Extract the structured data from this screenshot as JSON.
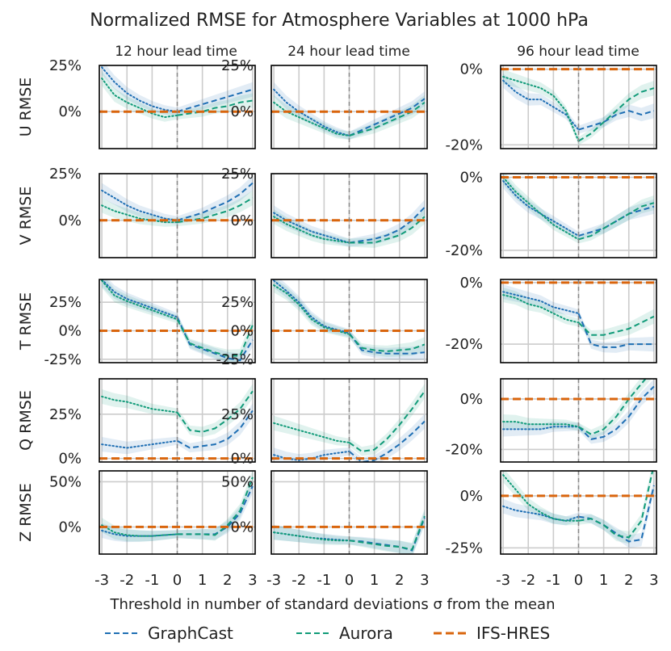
{
  "title": "Normalized RMSE for Atmosphere Variables at 1000 hPa",
  "xlabel": "Threshold in number of standard deviations σ from the mean",
  "columns": [
    "12 hour lead time",
    "24 hour lead time",
    "96 hour lead time"
  ],
  "rows": [
    "U RMSE",
    "V RMSE",
    "T RMSE",
    "Q RMSE",
    "Z RMSE"
  ],
  "x_ticks": [
    "-3",
    "-2",
    "-1",
    "0",
    "1",
    "2",
    "3"
  ],
  "legend": [
    {
      "label": "GraphCast",
      "color": "#1f6fb4"
    },
    {
      "label": "Aurora",
      "color": "#119b79"
    },
    {
      "label": "IFS-HRES",
      "color": "#d9650d"
    }
  ],
  "chart_data": {
    "type": "line",
    "x": [
      -3,
      -2.5,
      -2,
      -1.5,
      -1,
      -0.5,
      0,
      0.5,
      1,
      1.5,
      2,
      2.5,
      3
    ],
    "baseline": "IFS-HRES at 0%",
    "panels": [
      {
        "row": "U RMSE",
        "col": "12 hour lead time",
        "ylim": [
          -0.2,
          0.25
        ],
        "yticks": [
          0,
          0.25
        ],
        "ytick_labels": [
          "0%",
          "25%"
        ],
        "graphcast": [
          0.24,
          0.16,
          0.1,
          0.06,
          0.03,
          0.01,
          0,
          0.02,
          0.04,
          0.06,
          0.08,
          0.1,
          0.12
        ],
        "aurora": [
          0.18,
          0.09,
          0.05,
          0.02,
          -0.01,
          -0.03,
          -0.02,
          -0.01,
          0,
          0.02,
          0.03,
          0.05,
          0.06
        ]
      },
      {
        "row": "U RMSE",
        "col": "24 hour lead time",
        "ylim": [
          -0.2,
          0.25
        ],
        "yticks": [
          0,
          0.25
        ],
        "ytick_labels": [
          "0%",
          "25%"
        ],
        "graphcast": [
          0.12,
          0.05,
          0,
          -0.04,
          -0.08,
          -0.11,
          -0.13,
          -0.1,
          -0.07,
          -0.04,
          -0.01,
          0.02,
          0.07
        ],
        "aurora": [
          0.05,
          0,
          -0.03,
          -0.06,
          -0.09,
          -0.12,
          -0.13,
          -0.11,
          -0.09,
          -0.06,
          -0.03,
          0,
          0.05
        ]
      },
      {
        "row": "U RMSE",
        "col": "96 hour lead time",
        "ylim": [
          -0.21,
          0.01
        ],
        "yticks": [
          0,
          -0.2
        ],
        "ytick_labels": [
          "0%",
          "-20%"
        ],
        "graphcast": [
          -0.03,
          -0.06,
          -0.08,
          -0.08,
          -0.1,
          -0.12,
          -0.16,
          -0.15,
          -0.14,
          -0.12,
          -0.11,
          -0.12,
          -0.11
        ],
        "aurora": [
          -0.02,
          -0.03,
          -0.04,
          -0.05,
          -0.07,
          -0.11,
          -0.19,
          -0.17,
          -0.14,
          -0.11,
          -0.08,
          -0.06,
          -0.05
        ]
      },
      {
        "row": "V RMSE",
        "col": "12 hour lead time",
        "ylim": [
          -0.2,
          0.25
        ],
        "yticks": [
          0,
          0.25
        ],
        "ytick_labels": [
          "0%",
          "25%"
        ],
        "graphcast": [
          0.16,
          0.12,
          0.08,
          0.05,
          0.03,
          0.01,
          0,
          0.02,
          0.04,
          0.07,
          0.1,
          0.14,
          0.2
        ],
        "aurora": [
          0.08,
          0.05,
          0.03,
          0.01,
          0,
          -0.01,
          -0.01,
          0,
          0.01,
          0.03,
          0.05,
          0.08,
          0.12
        ]
      },
      {
        "row": "V RMSE",
        "col": "24 hour lead time",
        "ylim": [
          -0.2,
          0.25
        ],
        "yticks": [
          0,
          0.25
        ],
        "ytick_labels": [
          "0%",
          "25%"
        ],
        "graphcast": [
          0.04,
          0,
          -0.03,
          -0.06,
          -0.08,
          -0.1,
          -0.12,
          -0.11,
          -0.1,
          -0.08,
          -0.05,
          0,
          0.07
        ],
        "aurora": [
          0.02,
          -0.02,
          -0.05,
          -0.08,
          -0.1,
          -0.11,
          -0.12,
          -0.12,
          -0.12,
          -0.1,
          -0.08,
          -0.04,
          0.02
        ]
      },
      {
        "row": "V RMSE",
        "col": "96 hour lead time",
        "ylim": [
          -0.22,
          0.01
        ],
        "yticks": [
          0,
          -0.2
        ],
        "ytick_labels": [
          "0%",
          "-20%"
        ],
        "graphcast": [
          -0.01,
          -0.05,
          -0.08,
          -0.1,
          -0.12,
          -0.14,
          -0.16,
          -0.15,
          -0.14,
          -0.12,
          -0.1,
          -0.09,
          -0.08
        ],
        "aurora": [
          0,
          -0.04,
          -0.07,
          -0.1,
          -0.13,
          -0.15,
          -0.17,
          -0.16,
          -0.14,
          -0.12,
          -0.1,
          -0.08,
          -0.07
        ]
      },
      {
        "row": "T RMSE",
        "col": "12 hour lead time",
        "ylim": [
          -0.28,
          0.45
        ],
        "yticks": [
          -0.25,
          0,
          0.25
        ],
        "ytick_labels": [
          "-25%",
          "0%",
          "25%"
        ],
        "graphcast": [
          0.45,
          0.34,
          0.28,
          0.24,
          0.2,
          0.16,
          0.12,
          -0.12,
          -0.16,
          -0.2,
          -0.24,
          -0.26,
          -0.08
        ],
        "aurora": [
          0.44,
          0.31,
          0.26,
          0.22,
          0.18,
          0.14,
          0.1,
          -0.11,
          -0.15,
          -0.19,
          -0.22,
          -0.22,
          0.05
        ]
      },
      {
        "row": "T RMSE",
        "col": "24 hour lead time",
        "ylim": [
          -0.28,
          0.45
        ],
        "yticks": [
          -0.25,
          0,
          0.25
        ],
        "ytick_labels": [
          "-25%",
          "0%",
          "25%"
        ],
        "graphcast": [
          0.44,
          0.35,
          0.25,
          0.12,
          0.04,
          0.01,
          -0.02,
          -0.17,
          -0.19,
          -0.2,
          -0.2,
          -0.2,
          -0.19
        ],
        "aurora": [
          0.4,
          0.33,
          0.23,
          0.1,
          0.03,
          0,
          -0.03,
          -0.15,
          -0.17,
          -0.18,
          -0.17,
          -0.16,
          -0.12
        ]
      },
      {
        "row": "T RMSE",
        "col": "96 hour lead time",
        "ylim": [
          -0.26,
          0.01
        ],
        "yticks": [
          0,
          -0.2
        ],
        "ytick_labels": [
          "0%",
          "-20%"
        ],
        "graphcast": [
          -0.03,
          -0.04,
          -0.05,
          -0.06,
          -0.08,
          -0.09,
          -0.1,
          -0.2,
          -0.21,
          -0.21,
          -0.2,
          -0.2,
          -0.2
        ],
        "aurora": [
          -0.04,
          -0.05,
          -0.07,
          -0.08,
          -0.1,
          -0.12,
          -0.13,
          -0.17,
          -0.17,
          -0.16,
          -0.15,
          -0.13,
          -0.11
        ]
      },
      {
        "row": "Q RMSE",
        "col": "12 hour lead time",
        "ylim": [
          -0.02,
          0.45
        ],
        "yticks": [
          0,
          0.25
        ],
        "ytick_labels": [
          "0%",
          "25%"
        ],
        "graphcast": [
          0.08,
          0.07,
          0.06,
          0.07,
          0.08,
          0.09,
          0.1,
          0.06,
          0.07,
          0.08,
          0.11,
          0.17,
          0.27
        ],
        "aurora": [
          0.35,
          0.33,
          0.32,
          0.3,
          0.28,
          0.27,
          0.26,
          0.16,
          0.15,
          0.17,
          0.22,
          0.28,
          0.38
        ]
      },
      {
        "row": "Q RMSE",
        "col": "24 hour lead time",
        "ylim": [
          -0.02,
          0.45
        ],
        "yticks": [
          0,
          0.25
        ],
        "ytick_labels": [
          "0%",
          "25%"
        ],
        "graphcast": [
          0.02,
          0.0,
          -0.01,
          0,
          0.02,
          0.03,
          0.04,
          -0.02,
          -0.01,
          0.03,
          0.08,
          0.14,
          0.21
        ],
        "aurora": [
          0.2,
          0.18,
          0.16,
          0.14,
          0.12,
          0.1,
          0.09,
          0.04,
          0.05,
          0.11,
          0.19,
          0.28,
          0.38
        ]
      },
      {
        "row": "Q RMSE",
        "col": "96 hour lead time",
        "ylim": [
          -0.25,
          0.08
        ],
        "yticks": [
          0,
          -0.2
        ],
        "ytick_labels": [
          "0%",
          "-20%"
        ],
        "graphcast": [
          -0.12,
          -0.12,
          -0.12,
          -0.12,
          -0.11,
          -0.11,
          -0.11,
          -0.16,
          -0.15,
          -0.12,
          -0.07,
          0,
          0.05
        ],
        "aurora": [
          -0.09,
          -0.09,
          -0.1,
          -0.1,
          -0.1,
          -0.1,
          -0.11,
          -0.14,
          -0.12,
          -0.07,
          0,
          0.06,
          0.12
        ]
      },
      {
        "row": "Z RMSE",
        "col": "12 hour lead time",
        "ylim": [
          -0.3,
          0.62
        ],
        "yticks": [
          0,
          0.5
        ],
        "ytick_labels": [
          "0%",
          "50%"
        ],
        "graphcast": [
          -0.04,
          -0.08,
          -0.1,
          -0.1,
          -0.1,
          -0.09,
          -0.08,
          -0.08,
          -0.08,
          -0.08,
          0,
          0.15,
          0.45
        ],
        "aurora": [
          0.02,
          -0.06,
          -0.09,
          -0.1,
          -0.1,
          -0.09,
          -0.08,
          -0.08,
          -0.08,
          -0.09,
          0.02,
          0.18,
          0.55
        ]
      },
      {
        "row": "Z RMSE",
        "col": "24 hour lead time",
        "ylim": [
          -0.3,
          0.62
        ],
        "yticks": [
          0,
          0.5
        ],
        "ytick_labels": [
          "0%",
          "50%"
        ],
        "graphcast": [
          -0.06,
          -0.08,
          -0.1,
          -0.12,
          -0.13,
          -0.14,
          -0.15,
          -0.16,
          -0.18,
          -0.2,
          -0.22,
          -0.26,
          0.1
        ],
        "aurora": [
          -0.06,
          -0.08,
          -0.1,
          -0.12,
          -0.14,
          -0.15,
          -0.15,
          -0.17,
          -0.19,
          -0.21,
          -0.22,
          -0.25,
          0.12
        ]
      },
      {
        "row": "Z RMSE",
        "col": "96 hour lead time",
        "ylim": [
          -0.28,
          0.12
        ],
        "yticks": [
          0,
          -0.25
        ],
        "ytick_labels": [
          "0%",
          "-25%"
        ],
        "graphcast": [
          -0.05,
          -0.07,
          -0.08,
          -0.09,
          -0.11,
          -0.12,
          -0.1,
          -0.11,
          -0.14,
          -0.18,
          -0.22,
          -0.21,
          0.05
        ],
        "aurora": [
          0.1,
          0.03,
          -0.04,
          -0.08,
          -0.11,
          -0.12,
          -0.12,
          -0.11,
          -0.14,
          -0.19,
          -0.2,
          -0.12,
          0.15
        ]
      }
    ]
  }
}
